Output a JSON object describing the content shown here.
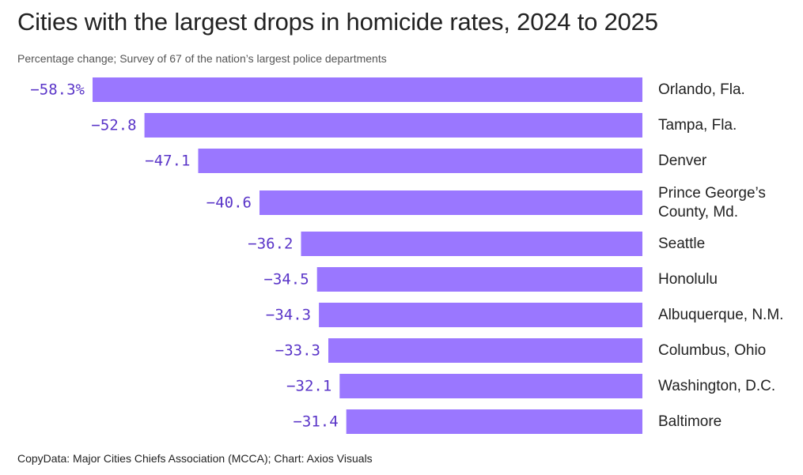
{
  "title": "Cities with the largest drops in homicide rates, 2024 to 2025",
  "subtitle": "Percentage change; Survey of 67 of the nation’s largest police departments",
  "source": "CopyData: Major Cities Chiefs Association (MCCA); Chart: Axios Visuals",
  "colors": {
    "bar": "#9a77ff",
    "value_text": "#5a35c8",
    "label_text": "#222222"
  },
  "chart_data": {
    "type": "bar",
    "orientation": "horizontal",
    "title": "Cities with the largest drops in homicide rates, 2024 to 2025",
    "subtitle": "Percentage change; Survey of 67 of the nation’s largest police departments",
    "xlabel": "",
    "ylabel": "",
    "grid": false,
    "categories": [
      [
        "Orlando, Fla."
      ],
      [
        "Tampa, Fla."
      ],
      [
        "Denver"
      ],
      [
        "Prince George’s",
        "County, Md."
      ],
      [
        "Seattle"
      ],
      [
        "Honolulu"
      ],
      [
        "Albuquerque, N.M."
      ],
      [
        "Columbus, Ohio"
      ],
      [
        "Washington, D.C."
      ],
      [
        "Baltimore"
      ]
    ],
    "values": [
      -58.3,
      -52.8,
      -47.1,
      -40.6,
      -36.2,
      -34.5,
      -34.3,
      -33.3,
      -32.1,
      -31.4
    ],
    "value_labels": [
      "−58.3%",
      "−52.8",
      "−47.1",
      "−40.6",
      "−36.2",
      "−34.5",
      "−34.3",
      "−33.3",
      "−32.1",
      "−31.4"
    ],
    "xlim": [
      -58.3,
      0
    ]
  }
}
